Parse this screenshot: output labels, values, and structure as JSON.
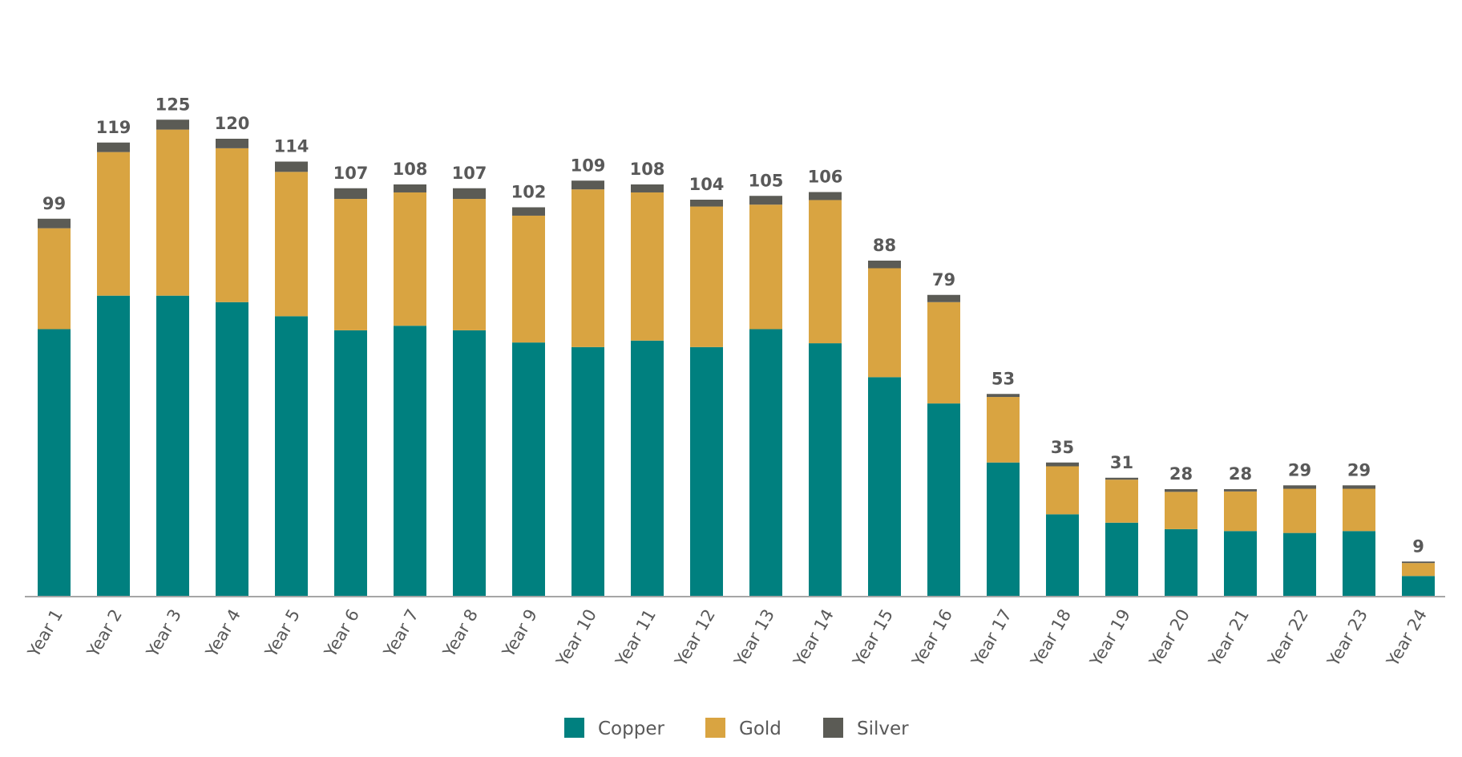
{
  "chart_data": {
    "type": "bar",
    "stacked": true,
    "title": "",
    "xlabel": "",
    "ylabel": "",
    "ylim": [
      0,
      145
    ],
    "grid": false,
    "legend_position": "bottom",
    "categories": [
      "Year 1",
      "Year 2",
      "Year 3",
      "Year 4",
      "Year 5",
      "Year 6",
      "Year 7",
      "Year 8",
      "Year 9",
      "Year 10",
      "Year 11",
      "Year 12",
      "Year 13",
      "Year 14",
      "Year 15",
      "Year 16",
      "Year 17",
      "Year 18",
      "Year 19",
      "Year 20",
      "Year 21",
      "Year 22",
      "Year 23",
      "Year 24"
    ],
    "series": [
      {
        "name": "Copper",
        "color": "#00807F",
        "values": [
          70,
          78.8,
          78.8,
          77.1,
          73.4,
          69.7,
          70.9,
          69.7,
          66.5,
          65.3,
          67,
          65.3,
          70,
          66.3,
          57.4,
          50.5,
          35,
          21.4,
          19.2,
          17.5,
          17,
          16.5,
          17,
          5.2
        ]
      },
      {
        "name": "Gold",
        "color": "#D9A441",
        "values": [
          26.5,
          37.7,
          43.6,
          40.4,
          37.9,
          34.5,
          35,
          34.5,
          33.3,
          41.4,
          38.9,
          36.9,
          32.7,
          37.6,
          28.6,
          26.6,
          17.2,
          12.6,
          11.3,
          9.8,
          10.4,
          11.6,
          11.1,
          3.4
        ]
      },
      {
        "name": "Silver",
        "color": "#5B5B55",
        "values": [
          2.5,
          2.5,
          2.6,
          2.5,
          2.7,
          2.8,
          2.1,
          2.8,
          2.2,
          2.3,
          2.1,
          1.8,
          2.3,
          2.1,
          2,
          1.9,
          0.8,
          1,
          0.5,
          0.7,
          0.6,
          0.9,
          0.9,
          0.4
        ]
      }
    ],
    "totals": [
      "99",
      "119",
      "125",
      "120",
      "114",
      "107",
      "108",
      "107",
      "102",
      "109",
      "108",
      "104",
      "105",
      "106",
      "88",
      "79",
      "53",
      "35",
      "31",
      "28",
      "28",
      "29",
      "29",
      "9"
    ]
  }
}
